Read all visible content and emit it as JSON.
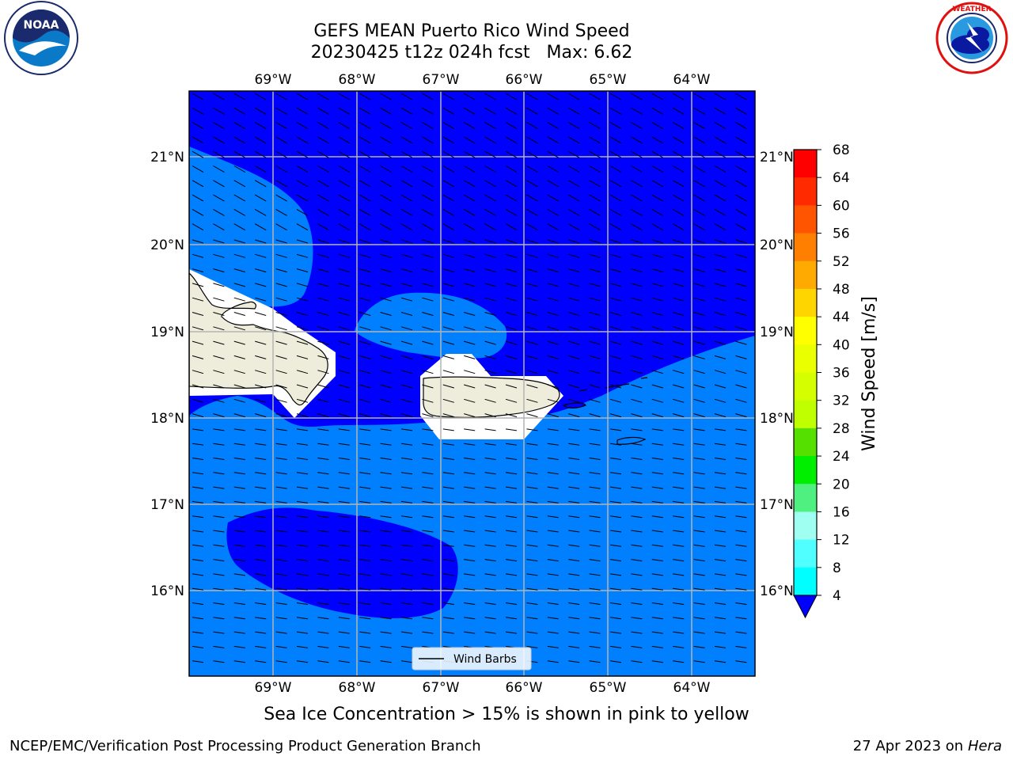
{
  "title": {
    "line1": "GEFS MEAN Puerto Rico Wind Speed",
    "line2": "20230425 t12z 024h fcst   Max: 6.62"
  },
  "map": {
    "lon_labels": [
      "69°W",
      "68°W",
      "67°W",
      "66°W",
      "65°W",
      "64°W"
    ],
    "lat_labels": [
      "21°N",
      "20°N",
      "19°N",
      "18°N",
      "17°N",
      "16°N"
    ],
    "legend_label": "Wind Barbs",
    "fill_colors": {
      "deep": "#0000ff",
      "light": "#0080ff",
      "land": "#eeeddc",
      "masked": "#ffffff"
    }
  },
  "colorbar": {
    "label": "Wind Speed [m/s]",
    "ticks": [
      "68",
      "64",
      "60",
      "56",
      "52",
      "48",
      "44",
      "40",
      "36",
      "32",
      "28",
      "24",
      "20",
      "16",
      "12",
      "8",
      "4"
    ],
    "colors": [
      "#ff0000",
      "#ff2a00",
      "#ff5500",
      "#ff8000",
      "#ffaa00",
      "#ffd500",
      "#ffff00",
      "#eaff00",
      "#d5ff00",
      "#bfff00",
      "#55e000",
      "#00ef00",
      "#50f080",
      "#9ffff0",
      "#50ffff",
      "#00ffff",
      "#0080ff",
      "#0000ff"
    ]
  },
  "logos": {
    "noaa_text": "NOAA",
    "noaa_ring": "NATIONAL OCEANIC AND ATMOSPHERIC ADMINISTRATION · U.S. DEPARTMENT OF COMMERCE",
    "nws_ring": "NATIONAL WEATHER SERVICE"
  },
  "note": "Sea Ice Concentration > 15% is shown in pink to yellow",
  "footer": {
    "left": "NCEP/EMC/Verification Post Processing Product Generation Branch",
    "right_date": "27 Apr 2023 on",
    "right_host": "Hera"
  }
}
